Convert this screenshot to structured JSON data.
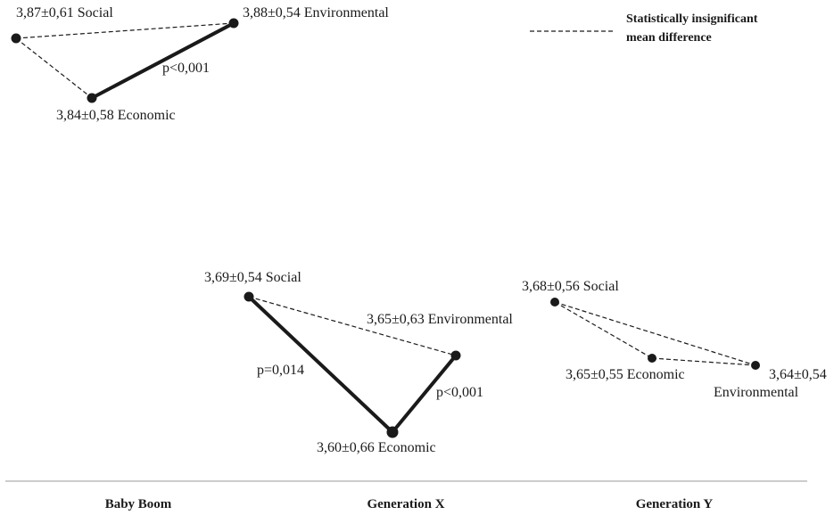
{
  "legend": {
    "line1": "Statistically insignificant",
    "line2": "mean difference"
  },
  "groups": [
    {
      "name": "Baby Boom",
      "nodes": {
        "social": "3,87±0,61 Social",
        "environmental": "3,88±0,54 Environmental",
        "economic": "3,84±0,58 Economic"
      },
      "edges": [
        {
          "from": "social",
          "to": "environmental",
          "significant": false,
          "label": ""
        },
        {
          "from": "social",
          "to": "economic",
          "significant": false,
          "label": ""
        },
        {
          "from": "economic",
          "to": "environmental",
          "significant": true,
          "label": "p<0,001"
        }
      ]
    },
    {
      "name": "Generation X",
      "nodes": {
        "social": "3,69±0,54 Social",
        "environmental": "3,65±0,63 Environmental",
        "economic": "3,60±0,66 Economic"
      },
      "edges": [
        {
          "from": "social",
          "to": "environmental",
          "significant": false,
          "label": ""
        },
        {
          "from": "social",
          "to": "economic",
          "significant": true,
          "label": "p=0,014"
        },
        {
          "from": "economic",
          "to": "environmental",
          "significant": true,
          "label": "p<0,001"
        }
      ]
    },
    {
      "name": "Generation Y",
      "nodes": {
        "social": "3,68±0,56 Social",
        "economic": "3,65±0,55 Economic",
        "environmental_value": "3,64±0,54",
        "environmental_name": "Environmental"
      },
      "edges": [
        {
          "from": "social",
          "to": "economic",
          "significant": false,
          "label": ""
        },
        {
          "from": "social",
          "to": "environmental",
          "significant": false,
          "label": ""
        },
        {
          "from": "economic",
          "to": "environmental",
          "significant": false,
          "label": ""
        }
      ]
    }
  ]
}
